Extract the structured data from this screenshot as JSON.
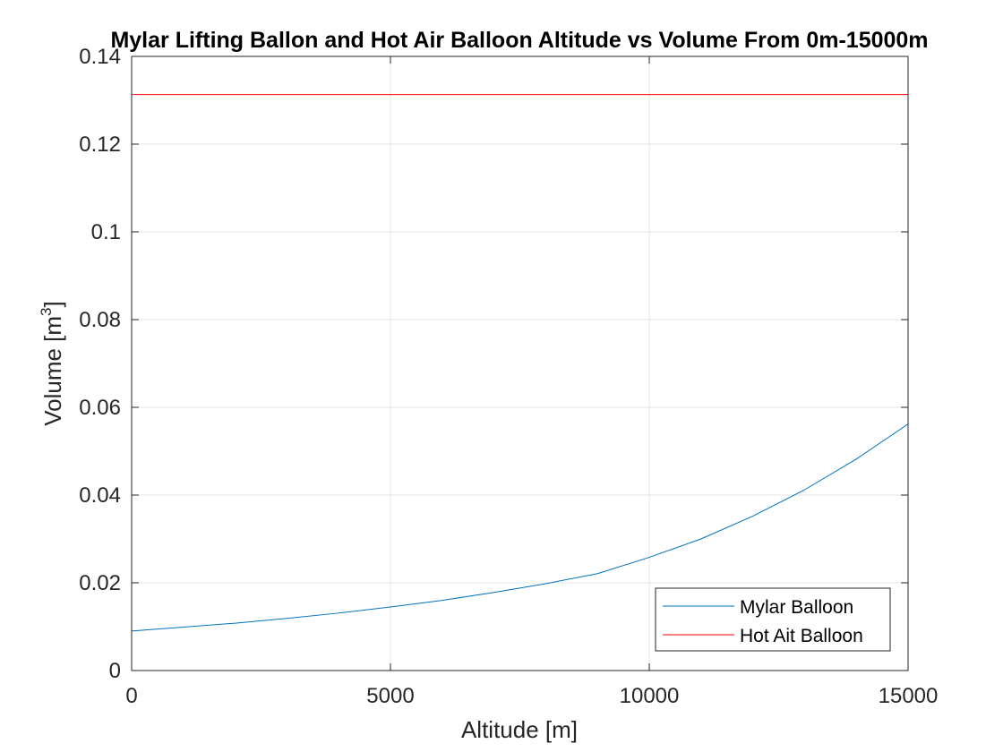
{
  "chart_data": {
    "type": "line",
    "title": "Mylar Lifting Ballon and Hot Air Balloon Altitude vs Volume From 0m-15000m",
    "xlabel": "Altitude [m]",
    "ylabel": {
      "prefix": "Volume [m",
      "superscript": "3",
      "suffix": "]"
    },
    "xlim": [
      0,
      15000
    ],
    "ylim": [
      0,
      0.14
    ],
    "xticks": [
      0,
      5000,
      10000,
      15000
    ],
    "xtick_labels": [
      "0",
      "5000",
      "10000",
      "15000"
    ],
    "yticks": [
      0,
      0.02,
      0.04,
      0.06,
      0.08,
      0.1,
      0.12,
      0.14
    ],
    "ytick_labels": [
      "0",
      "0.02",
      "0.04",
      "0.06",
      "0.08",
      "0.1",
      "0.12",
      "0.14"
    ],
    "grid": true,
    "legend_position": "bottom-right",
    "series": [
      {
        "name": "Mylar Balloon",
        "color": "#0072BD",
        "x": [
          0,
          1000,
          2000,
          3000,
          4000,
          5000,
          6000,
          7000,
          8000,
          9000,
          10000,
          11000,
          12000,
          13000,
          14000,
          15000
        ],
        "y": [
          0.009,
          0.0099,
          0.0108,
          0.0119,
          0.0131,
          0.0145,
          0.016,
          0.0178,
          0.0198,
          0.0221,
          0.0258,
          0.03,
          0.0352,
          0.0412,
          0.0482,
          0.0562
        ]
      },
      {
        "name": "Hot Ait Balloon",
        "color": "#FF0000",
        "x": [
          0,
          15000
        ],
        "y": [
          0.1313,
          0.1313
        ]
      }
    ]
  }
}
